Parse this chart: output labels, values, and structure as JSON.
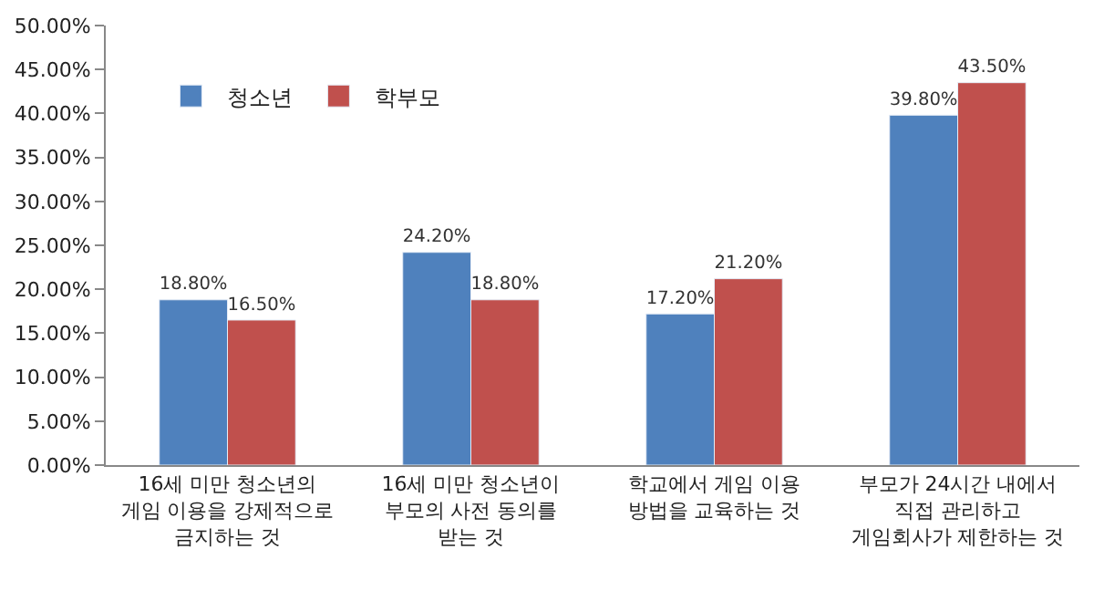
{
  "chart_data": {
    "type": "bar",
    "categories": [
      "16세 미만 청소년의\n게임 이용을 강제적으로\n금지하는 것",
      "16세 미만 청소년이\n부모의 사전 동의를\n받는 것",
      "학교에서 게임 이용\n방법을 교육하는 것",
      "부모가 24시간 내에서\n직접 관리하고\n게임회사가 제한하는 것"
    ],
    "series": [
      {
        "name": "청소년",
        "color": "#4f81bd",
        "values": [
          18.8,
          24.2,
          17.2,
          39.8
        ],
        "value_labels": [
          "18.80%",
          "24.20%",
          "17.20%",
          "39.80%"
        ]
      },
      {
        "name": "학부모",
        "color": "#c0504d",
        "values": [
          16.5,
          18.8,
          21.2,
          43.5
        ],
        "value_labels": [
          "16.50%",
          "18.80%",
          "21.20%",
          "43.50%"
        ]
      }
    ],
    "ylim": [
      0,
      50
    ],
    "yticks": [
      {
        "value": 0,
        "label": "0.00%"
      },
      {
        "value": 5,
        "label": "5.00%"
      },
      {
        "value": 10,
        "label": "10.00%"
      },
      {
        "value": 15,
        "label": "15.00%"
      },
      {
        "value": 20,
        "label": "20.00%"
      },
      {
        "value": 25,
        "label": "25.00%"
      },
      {
        "value": 30,
        "label": "30.00%"
      },
      {
        "value": 35,
        "label": "35.00%"
      },
      {
        "value": 40,
        "label": "40.00%"
      },
      {
        "value": 45,
        "label": "45.00%"
      },
      {
        "value": 50,
        "label": "50.00%"
      }
    ],
    "legend": "top left"
  }
}
